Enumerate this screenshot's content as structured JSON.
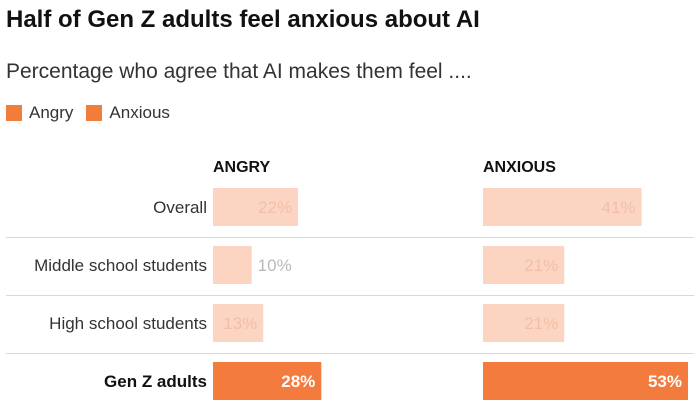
{
  "title": "Half of Gen Z adults feel anxious about AI",
  "subtitle": "Percentage who agree that AI makes them feel ....",
  "legend": [
    {
      "label": "Angry",
      "color": "#f47b3e"
    },
    {
      "label": "Anxious",
      "color": "#f47b3e"
    }
  ],
  "chart_data": {
    "type": "bar",
    "title": "Half of Gen Z adults feel anxious about AI",
    "subtitle": "Percentage who agree that AI makes them feel ....",
    "categories": [
      "Overall",
      "Middle school students",
      "High school students",
      "Gen Z adults"
    ],
    "highlight_category": "Gen Z adults",
    "series": [
      {
        "name": "ANGRY",
        "values": [
          22,
          10,
          13,
          28
        ],
        "labels": [
          "22%",
          "10%",
          "13%",
          "28%"
        ]
      },
      {
        "name": "ANXIOUS",
        "values": [
          41,
          21,
          21,
          53
        ],
        "labels": [
          "41%",
          "21%",
          "21%",
          "53%"
        ]
      }
    ],
    "xlim": [
      0,
      53
    ],
    "colors": {
      "highlight": "#f47b3e",
      "muted": "#fbd5c2",
      "divider": "#d9d9d9"
    },
    "grid": false,
    "legend_position": "top-left"
  }
}
